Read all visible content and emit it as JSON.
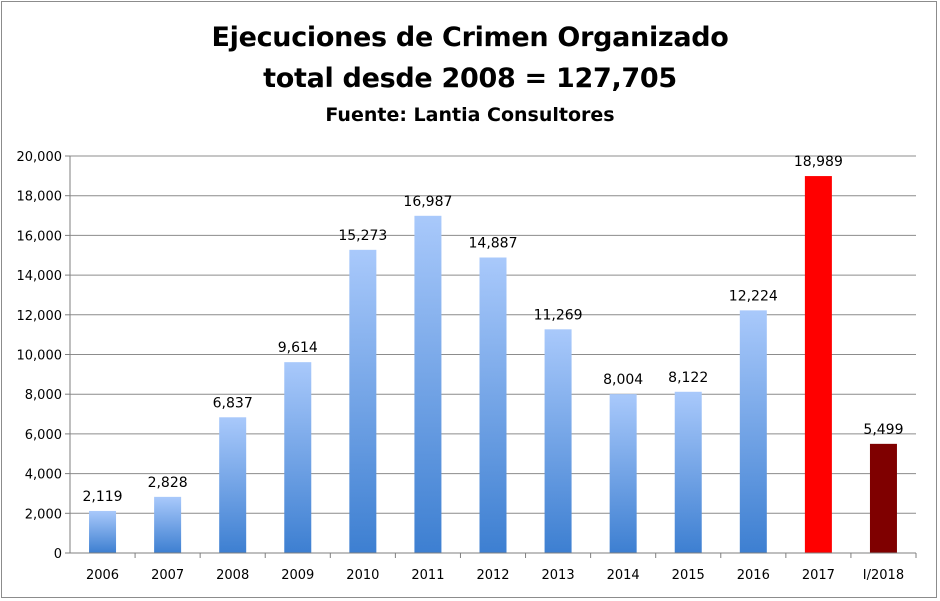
{
  "chart_data": {
    "type": "bar",
    "title": "Ejecuciones de Crimen Organizado",
    "subtitle": "total desde 2008 = 127,705",
    "source": "Fuente: Lantia Consultores",
    "categories": [
      "2006",
      "2007",
      "2008",
      "2009",
      "2010",
      "2011",
      "2012",
      "2013",
      "2014",
      "2015",
      "2016",
      "2017",
      "I/2018"
    ],
    "values": [
      2119,
      2828,
      6837,
      9614,
      15273,
      16987,
      14887,
      11269,
      8004,
      8122,
      12224,
      18989,
      5499
    ],
    "data_labels": [
      "2,119",
      "2,828",
      "6,837",
      "9,614",
      "15,273",
      "16,987",
      "14,887",
      "11,269",
      "8,004",
      "8,122",
      "12,224",
      "18,989",
      "5,499"
    ],
    "bar_colors": [
      "gradient",
      "gradient",
      "gradient",
      "gradient",
      "gradient",
      "gradient",
      "gradient",
      "gradient",
      "gradient",
      "gradient",
      "gradient",
      "#ff0000",
      "#7f0000"
    ],
    "gradient_colors": {
      "top": "#a9c9fb",
      "bottom": "#3d7fd1"
    },
    "ylim": [
      0,
      20000
    ],
    "yticks": [
      0,
      2000,
      4000,
      6000,
      8000,
      10000,
      12000,
      14000,
      16000,
      18000,
      20000
    ],
    "ytick_labels": [
      "0",
      "2,000",
      "4,000",
      "6,000",
      "8,000",
      "10,000",
      "12,000",
      "14,000",
      "16,000",
      "18,000",
      "20,000"
    ],
    "grid": true,
    "legend": "none"
  }
}
